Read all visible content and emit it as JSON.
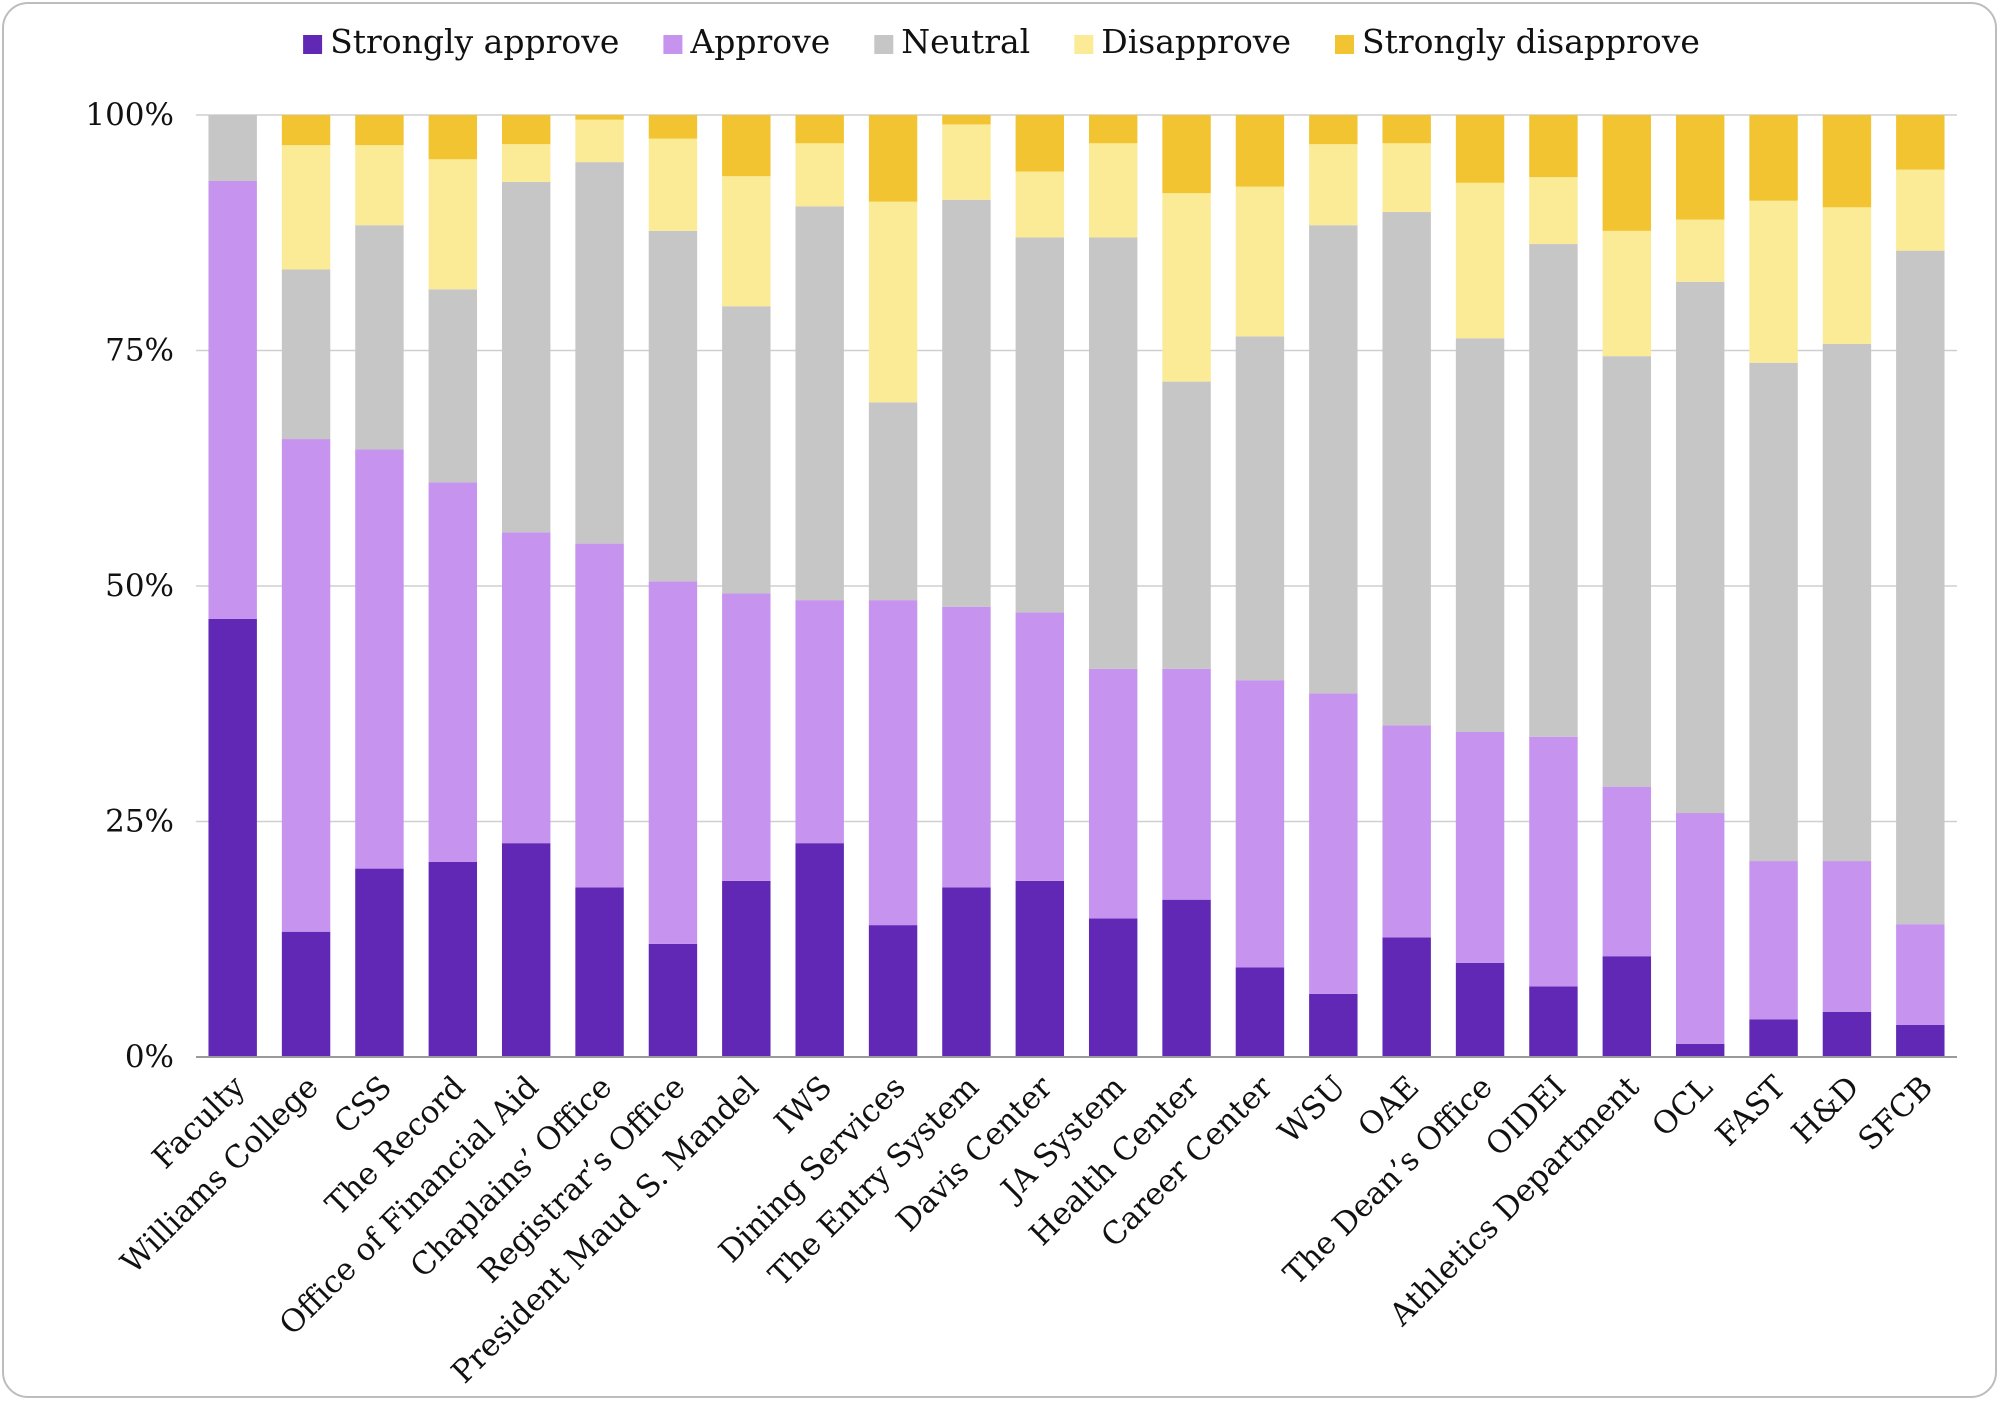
{
  "chart_data": {
    "type": "bar",
    "stacked": true,
    "percent_stacked": true,
    "categories": [
      "Faculty",
      "Williams College",
      "CSS",
      "The Record",
      "Office of Financial Aid",
      "Chaplains’ Office",
      "Registrar’s Office",
      "President Maud S. Mandel",
      "IWS",
      "Dining Services",
      "The Entry System",
      "Davis Center",
      "JA System",
      "Health Center",
      "Career Center",
      "WSU",
      "OAE",
      "The Dean’s Office",
      "OIDEI",
      "Athletics Department",
      "OCL",
      "FAST",
      "H&D",
      "SFCB"
    ],
    "series": [
      {
        "name": "Strongly approve",
        "color": "#6128b6",
        "values": [
          46.5,
          13.3,
          20.0,
          20.7,
          22.7,
          18.0,
          12.0,
          18.7,
          22.7,
          14.0,
          18.0,
          18.7,
          14.7,
          16.7,
          9.5,
          6.7,
          12.7,
          10.0,
          7.5,
          10.7,
          1.4,
          4.0,
          4.8,
          3.4
        ]
      },
      {
        "name": "Approve",
        "color": "#c693ee",
        "values": [
          46.5,
          52.3,
          44.5,
          40.3,
          33.0,
          36.5,
          38.5,
          30.5,
          25.8,
          34.5,
          29.8,
          28.5,
          26.5,
          24.5,
          30.5,
          31.9,
          22.5,
          24.5,
          26.5,
          18.0,
          24.5,
          16.8,
          16.0,
          10.7
        ]
      },
      {
        "name": "Neutral",
        "color": "#c6c6c6",
        "values": [
          7.0,
          18.0,
          23.8,
          20.5,
          37.2,
          40.5,
          37.2,
          30.5,
          41.8,
          21.0,
          43.2,
          39.8,
          45.8,
          30.5,
          36.5,
          49.7,
          54.5,
          41.8,
          52.3,
          45.7,
          56.4,
          52.9,
          54.9,
          71.5
        ]
      },
      {
        "name": "Disapprove",
        "color": "#fbeb96",
        "values": [
          0,
          13.2,
          8.5,
          13.8,
          4.0,
          4.5,
          9.8,
          13.8,
          6.7,
          21.3,
          8.0,
          7.0,
          10.0,
          20.0,
          15.9,
          8.6,
          7.3,
          16.5,
          7.1,
          13.3,
          6.6,
          17.2,
          14.5,
          8.6
        ]
      },
      {
        "name": "Strongly disapprove",
        "color": "#f2c432",
        "values": [
          0,
          3.2,
          3.2,
          4.7,
          3.1,
          0.5,
          2.5,
          6.5,
          3.0,
          9.2,
          1.0,
          6.0,
          3.0,
          8.3,
          7.6,
          3.1,
          3.0,
          7.2,
          6.6,
          12.3,
          11.1,
          9.1,
          9.8,
          5.8
        ]
      }
    ],
    "yticks": [
      "0%",
      "25%",
      "50%",
      "75%",
      "100%"
    ],
    "ylim": [
      0,
      100
    ],
    "grid": true,
    "legend": "top-center"
  }
}
